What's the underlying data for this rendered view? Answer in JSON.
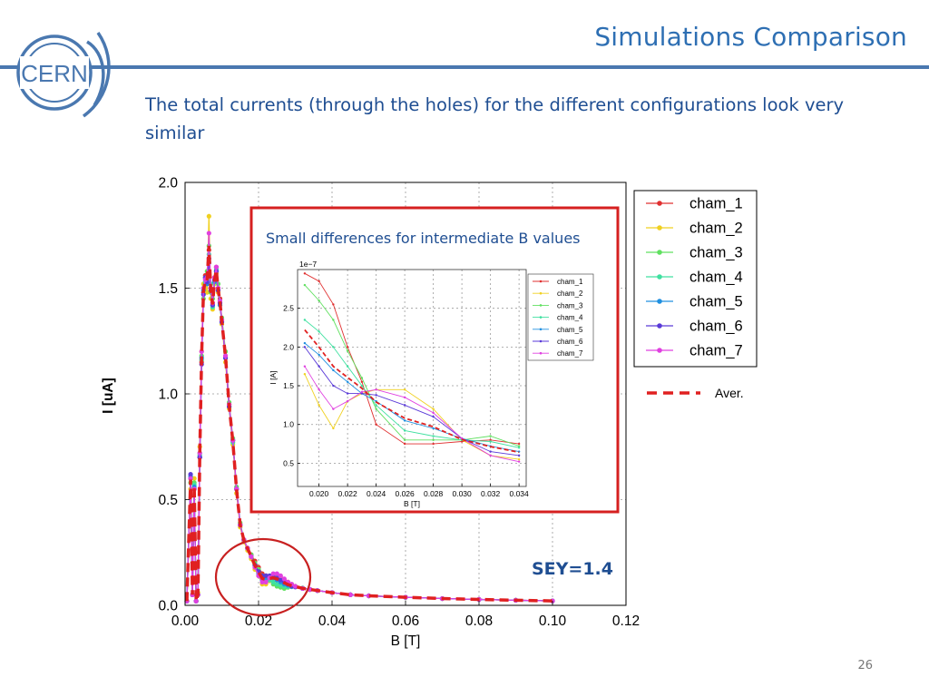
{
  "slide": {
    "title": "Simulations Comparison",
    "subtitle": "The total currents (through the holes) for the different configurations look very similar",
    "page_number": "26",
    "logo_text": "CERN",
    "callout": "Small differences for intermediate B values",
    "sey": "SEY=1.4"
  },
  "colors": {
    "title": "#2e6fb3",
    "subtitle": "#1f4e92",
    "accent_line": "#4a78b0",
    "highlight_box": "#d62020"
  },
  "chart_data": [
    {
      "type": "line",
      "title": "",
      "xlabel": "B [T]",
      "ylabel": "I [uA]",
      "xlim": [
        0.0,
        0.12
      ],
      "ylim": [
        0.0,
        2.0
      ],
      "xticks": [
        "0.00",
        "0.02",
        "0.04",
        "0.06",
        "0.08",
        "0.10",
        "0.12"
      ],
      "yticks": [
        "0.0",
        "0.5",
        "1.0",
        "1.5",
        "2.0"
      ],
      "grid": true,
      "legend_position": "right-outside",
      "x": [
        0.0005,
        0.0015,
        0.002,
        0.0025,
        0.003,
        0.0035,
        0.004,
        0.0045,
        0.005,
        0.0055,
        0.006,
        0.0065,
        0.007,
        0.0075,
        0.008,
        0.0085,
        0.009,
        0.0095,
        0.01,
        0.011,
        0.012,
        0.013,
        0.014,
        0.015,
        0.016,
        0.017,
        0.018,
        0.019,
        0.02,
        0.021,
        0.022,
        0.023,
        0.024,
        0.025,
        0.026,
        0.027,
        0.028,
        0.029,
        0.03,
        0.032,
        0.034,
        0.036,
        0.04,
        0.045,
        0.05,
        0.06,
        0.07,
        0.08,
        0.09,
        0.1
      ],
      "series": [
        {
          "name": "cham_1",
          "color": "#e03030",
          "values": [
            0.02,
            0.6,
            0.05,
            0.55,
            0.02,
            0.05,
            0.7,
            1.15,
            1.48,
            1.56,
            1.55,
            1.68,
            1.5,
            1.43,
            1.55,
            1.6,
            1.5,
            1.45,
            1.35,
            1.18,
            0.95,
            0.78,
            0.55,
            0.38,
            0.31,
            0.27,
            0.24,
            0.21,
            0.18,
            0.15,
            0.14,
            0.135,
            0.14,
            0.14,
            0.13,
            0.12,
            0.11,
            0.1,
            0.09,
            0.08,
            0.075,
            0.07,
            0.06,
            0.05,
            0.045,
            0.038,
            0.032,
            0.028,
            0.024,
            0.021
          ]
        },
        {
          "name": "cham_2",
          "color": "#f0d020",
          "values": [
            0.02,
            0.55,
            0.05,
            0.6,
            0.02,
            0.06,
            0.75,
            1.2,
            1.52,
            1.5,
            1.48,
            1.84,
            1.45,
            1.4,
            1.52,
            1.57,
            1.48,
            1.42,
            1.33,
            1.15,
            0.93,
            0.76,
            0.53,
            0.37,
            0.3,
            0.26,
            0.22,
            0.17,
            0.14,
            0.1,
            0.1,
            0.115,
            0.145,
            0.145,
            0.13,
            0.12,
            0.1,
            0.095,
            0.09,
            0.08,
            0.075,
            0.07,
            0.06,
            0.05,
            0.045,
            0.038,
            0.032,
            0.028,
            0.024,
            0.021
          ]
        },
        {
          "name": "cham_3",
          "color": "#60e060",
          "values": [
            0.02,
            0.58,
            0.05,
            0.58,
            0.02,
            0.05,
            0.72,
            1.18,
            1.45,
            1.52,
            1.58,
            1.7,
            1.48,
            1.45,
            1.53,
            1.58,
            1.52,
            1.44,
            1.36,
            1.2,
            0.96,
            0.79,
            0.56,
            0.39,
            0.31,
            0.27,
            0.24,
            0.2,
            0.17,
            0.14,
            0.13,
            0.12,
            0.1,
            0.09,
            0.085,
            0.08,
            0.085,
            0.09,
            0.09,
            0.082,
            0.075,
            0.07,
            0.06,
            0.05,
            0.045,
            0.038,
            0.032,
            0.028,
            0.024,
            0.021
          ]
        },
        {
          "name": "cham_4",
          "color": "#40e0a0",
          "values": [
            0.02,
            0.6,
            0.05,
            0.57,
            0.02,
            0.05,
            0.71,
            1.16,
            1.5,
            1.53,
            1.54,
            1.66,
            1.52,
            1.41,
            1.54,
            1.59,
            1.49,
            1.43,
            1.34,
            1.17,
            0.94,
            0.77,
            0.55,
            0.38,
            0.31,
            0.27,
            0.23,
            0.19,
            0.16,
            0.13,
            0.12,
            0.12,
            0.11,
            0.1,
            0.095,
            0.09,
            0.088,
            0.088,
            0.088,
            0.08,
            0.075,
            0.07,
            0.06,
            0.05,
            0.045,
            0.038,
            0.032,
            0.028,
            0.024,
            0.021
          ]
        },
        {
          "name": "cham_5",
          "color": "#2090e0",
          "values": [
            0.02,
            0.61,
            0.05,
            0.56,
            0.02,
            0.05,
            0.7,
            1.17,
            1.49,
            1.55,
            1.52,
            1.62,
            1.5,
            1.42,
            1.53,
            1.58,
            1.49,
            1.42,
            1.34,
            1.17,
            0.94,
            0.78,
            0.55,
            0.38,
            0.31,
            0.27,
            0.23,
            0.19,
            0.15,
            0.12,
            0.12,
            0.13,
            0.13,
            0.12,
            0.11,
            0.1,
            0.095,
            0.09,
            0.088,
            0.08,
            0.075,
            0.07,
            0.06,
            0.05,
            0.045,
            0.038,
            0.032,
            0.028,
            0.024,
            0.021
          ]
        },
        {
          "name": "cham_6",
          "color": "#5a3ad8",
          "values": [
            0.02,
            0.62,
            0.05,
            0.55,
            0.02,
            0.05,
            0.7,
            1.14,
            1.47,
            1.55,
            1.53,
            1.64,
            1.49,
            1.42,
            1.54,
            1.58,
            1.49,
            1.43,
            1.34,
            1.17,
            0.94,
            0.78,
            0.55,
            0.38,
            0.31,
            0.27,
            0.23,
            0.19,
            0.16,
            0.14,
            0.14,
            0.14,
            0.135,
            0.13,
            0.12,
            0.11,
            0.1,
            0.09,
            0.087,
            0.08,
            0.075,
            0.07,
            0.06,
            0.05,
            0.045,
            0.038,
            0.032,
            0.028,
            0.024,
            0.021
          ]
        },
        {
          "name": "cham_7",
          "color": "#e040e0",
          "values": [
            0.02,
            0.6,
            0.05,
            0.55,
            0.02,
            0.05,
            0.72,
            1.2,
            1.5,
            1.54,
            1.55,
            1.76,
            1.5,
            1.43,
            1.55,
            1.6,
            1.5,
            1.44,
            1.35,
            1.18,
            0.95,
            0.78,
            0.55,
            0.38,
            0.31,
            0.27,
            0.23,
            0.18,
            0.14,
            0.11,
            0.11,
            0.13,
            0.15,
            0.15,
            0.14,
            0.125,
            0.11,
            0.1,
            0.09,
            0.08,
            0.075,
            0.07,
            0.06,
            0.05,
            0.045,
            0.038,
            0.032,
            0.028,
            0.024,
            0.021
          ]
        }
      ],
      "average": {
        "name": "Aver.",
        "color": "#e02020",
        "style": "dashed"
      }
    },
    {
      "type": "line",
      "title": "",
      "xlabel": "B [T]",
      "ylabel": "I [A]",
      "scale_label": "1e−7",
      "xlim": [
        0.0185,
        0.0345
      ],
      "ylim": [
        0.2,
        3.0
      ],
      "xticks": [
        "0.020",
        "0.022",
        "0.024",
        "0.026",
        "0.028",
        "0.030",
        "0.032",
        "0.034"
      ],
      "yticks": [
        "0.5",
        "1.0",
        "1.5",
        "2.0",
        "2.5"
      ],
      "grid": true,
      "legend_position": "top-right",
      "x": [
        0.019,
        0.02,
        0.021,
        0.022,
        0.023,
        0.024,
        0.026,
        0.028,
        0.03,
        0.032,
        0.034
      ],
      "series": [
        {
          "name": "cham_1",
          "color": "#e03030",
          "values": [
            2.95,
            2.85,
            2.55,
            2.0,
            1.55,
            1.0,
            0.75,
            0.75,
            0.78,
            0.8,
            0.75
          ]
        },
        {
          "name": "cham_2",
          "color": "#f0d020",
          "values": [
            1.65,
            1.25,
            0.95,
            1.3,
            1.4,
            1.45,
            1.45,
            1.2,
            0.8,
            0.6,
            0.55
          ]
        },
        {
          "name": "cham_3",
          "color": "#60e060",
          "values": [
            2.8,
            2.6,
            2.35,
            1.95,
            1.6,
            1.2,
            0.8,
            0.8,
            0.8,
            0.85,
            0.72
          ]
        },
        {
          "name": "cham_4",
          "color": "#40e0a0",
          "values": [
            2.35,
            2.2,
            2.0,
            1.75,
            1.5,
            1.25,
            0.92,
            0.85,
            0.8,
            0.78,
            0.7
          ]
        },
        {
          "name": "cham_5",
          "color": "#2090e0",
          "values": [
            2.05,
            1.9,
            1.7,
            1.55,
            1.4,
            1.3,
            1.05,
            0.95,
            0.82,
            0.72,
            0.65
          ]
        },
        {
          "name": "cham_6",
          "color": "#5a3ad8",
          "values": [
            2.0,
            1.75,
            1.5,
            1.4,
            1.4,
            1.38,
            1.25,
            1.1,
            0.82,
            0.65,
            0.6
          ]
        },
        {
          "name": "cham_7",
          "color": "#e040e0",
          "values": [
            1.75,
            1.45,
            1.2,
            1.3,
            1.42,
            1.45,
            1.35,
            1.15,
            0.82,
            0.6,
            0.52
          ]
        }
      ],
      "average": {
        "name": "",
        "color": "#e02020",
        "style": "dashed"
      }
    }
  ]
}
